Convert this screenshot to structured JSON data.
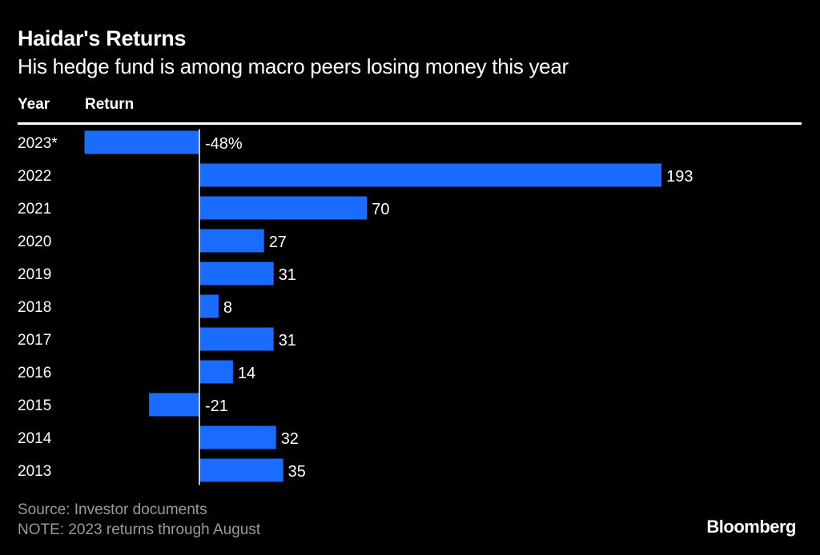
{
  "header": {
    "title": "Haidar's Returns",
    "subtitle": "His hedge fund is among macro peers losing money this year",
    "col_year": "Year",
    "col_return": "Return"
  },
  "footer": {
    "source": "Source: Investor documents",
    "note": "NOTE: 2023 returns through August",
    "brand": "Bloomberg"
  },
  "colors": {
    "background": "#000000",
    "bar": "#1a6cff",
    "text": "#ffffff",
    "muted": "#9a9a9a"
  },
  "chart_data": {
    "type": "bar",
    "orientation": "horizontal",
    "categories": [
      "2023*",
      "2022",
      "2021",
      "2020",
      "2019",
      "2018",
      "2017",
      "2016",
      "2015",
      "2014",
      "2013"
    ],
    "values": [
      -48,
      193,
      70,
      27,
      31,
      8,
      31,
      14,
      -21,
      32,
      35
    ],
    "value_labels": [
      "-48%",
      "193",
      "70",
      "27",
      "31",
      "8",
      "31",
      "14",
      "-21",
      "32",
      "35"
    ],
    "xlim": [
      -48,
      193
    ],
    "grid": false,
    "legend": "none"
  }
}
